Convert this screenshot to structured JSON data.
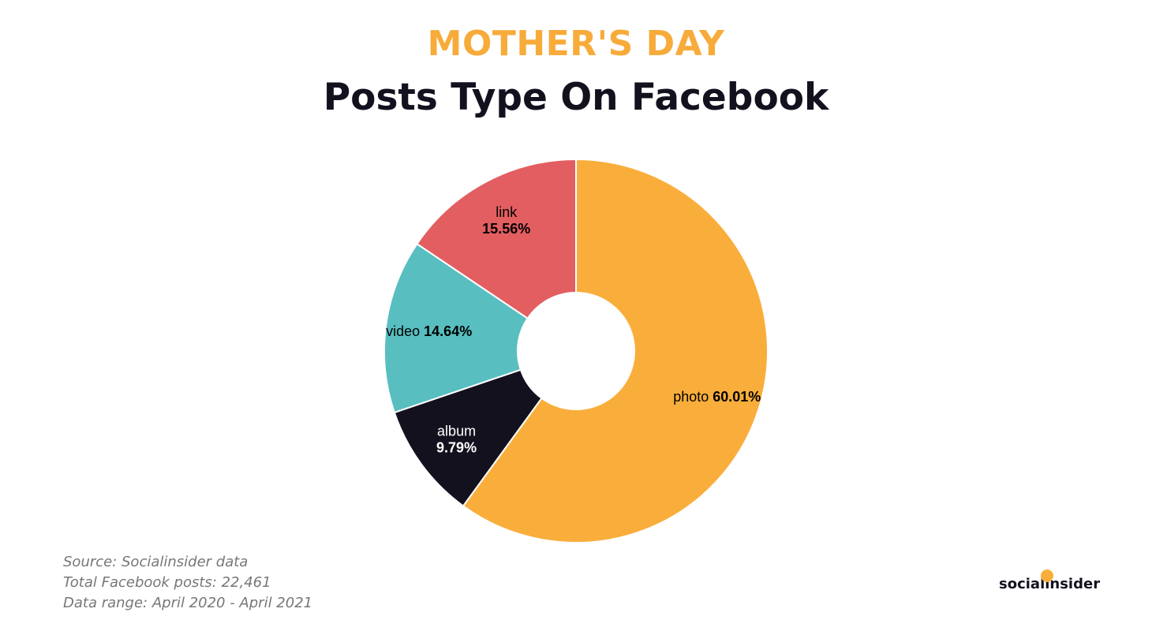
{
  "colors": {
    "supertitle": "#f7ab3a",
    "title": "#14111f",
    "accent": "#f9ae3b"
  },
  "header": {
    "supertitle": "MOTHER'S DAY",
    "title": "Posts Type On Facebook"
  },
  "chart_data": {
    "type": "pie",
    "variant": "donut",
    "start_angle_deg": 0,
    "direction": "clockwise",
    "slices": [
      {
        "name": "photo",
        "value": 60.01,
        "label": "photo",
        "pct_label": "60.01%",
        "color": "#f9ae3b",
        "label_color": "#000000",
        "label_layout": "inline"
      },
      {
        "name": "album",
        "value": 9.79,
        "label": "album",
        "pct_label": "9.79%",
        "color": "#14111f",
        "label_color": "#ffffff",
        "label_layout": "stacked"
      },
      {
        "name": "video",
        "value": 14.64,
        "label": "video",
        "pct_label": "14.64%",
        "color": "#58bec0",
        "label_color": "#000000",
        "label_layout": "inline"
      },
      {
        "name": "link",
        "value": 15.56,
        "label": "link",
        "pct_label": "15.56%",
        "color": "#e35e60",
        "label_color": "#000000",
        "label_layout": "stacked"
      }
    ]
  },
  "footnote": {
    "source": "Source: Socialinsider data",
    "total": "Total Facebook posts: 22,461",
    "range": "Data range: April 2020 - April 2021"
  },
  "logo": {
    "text": "socialinsider",
    "dot_color": "#f9ae3b",
    "icon": "smiley-dot-icon"
  }
}
